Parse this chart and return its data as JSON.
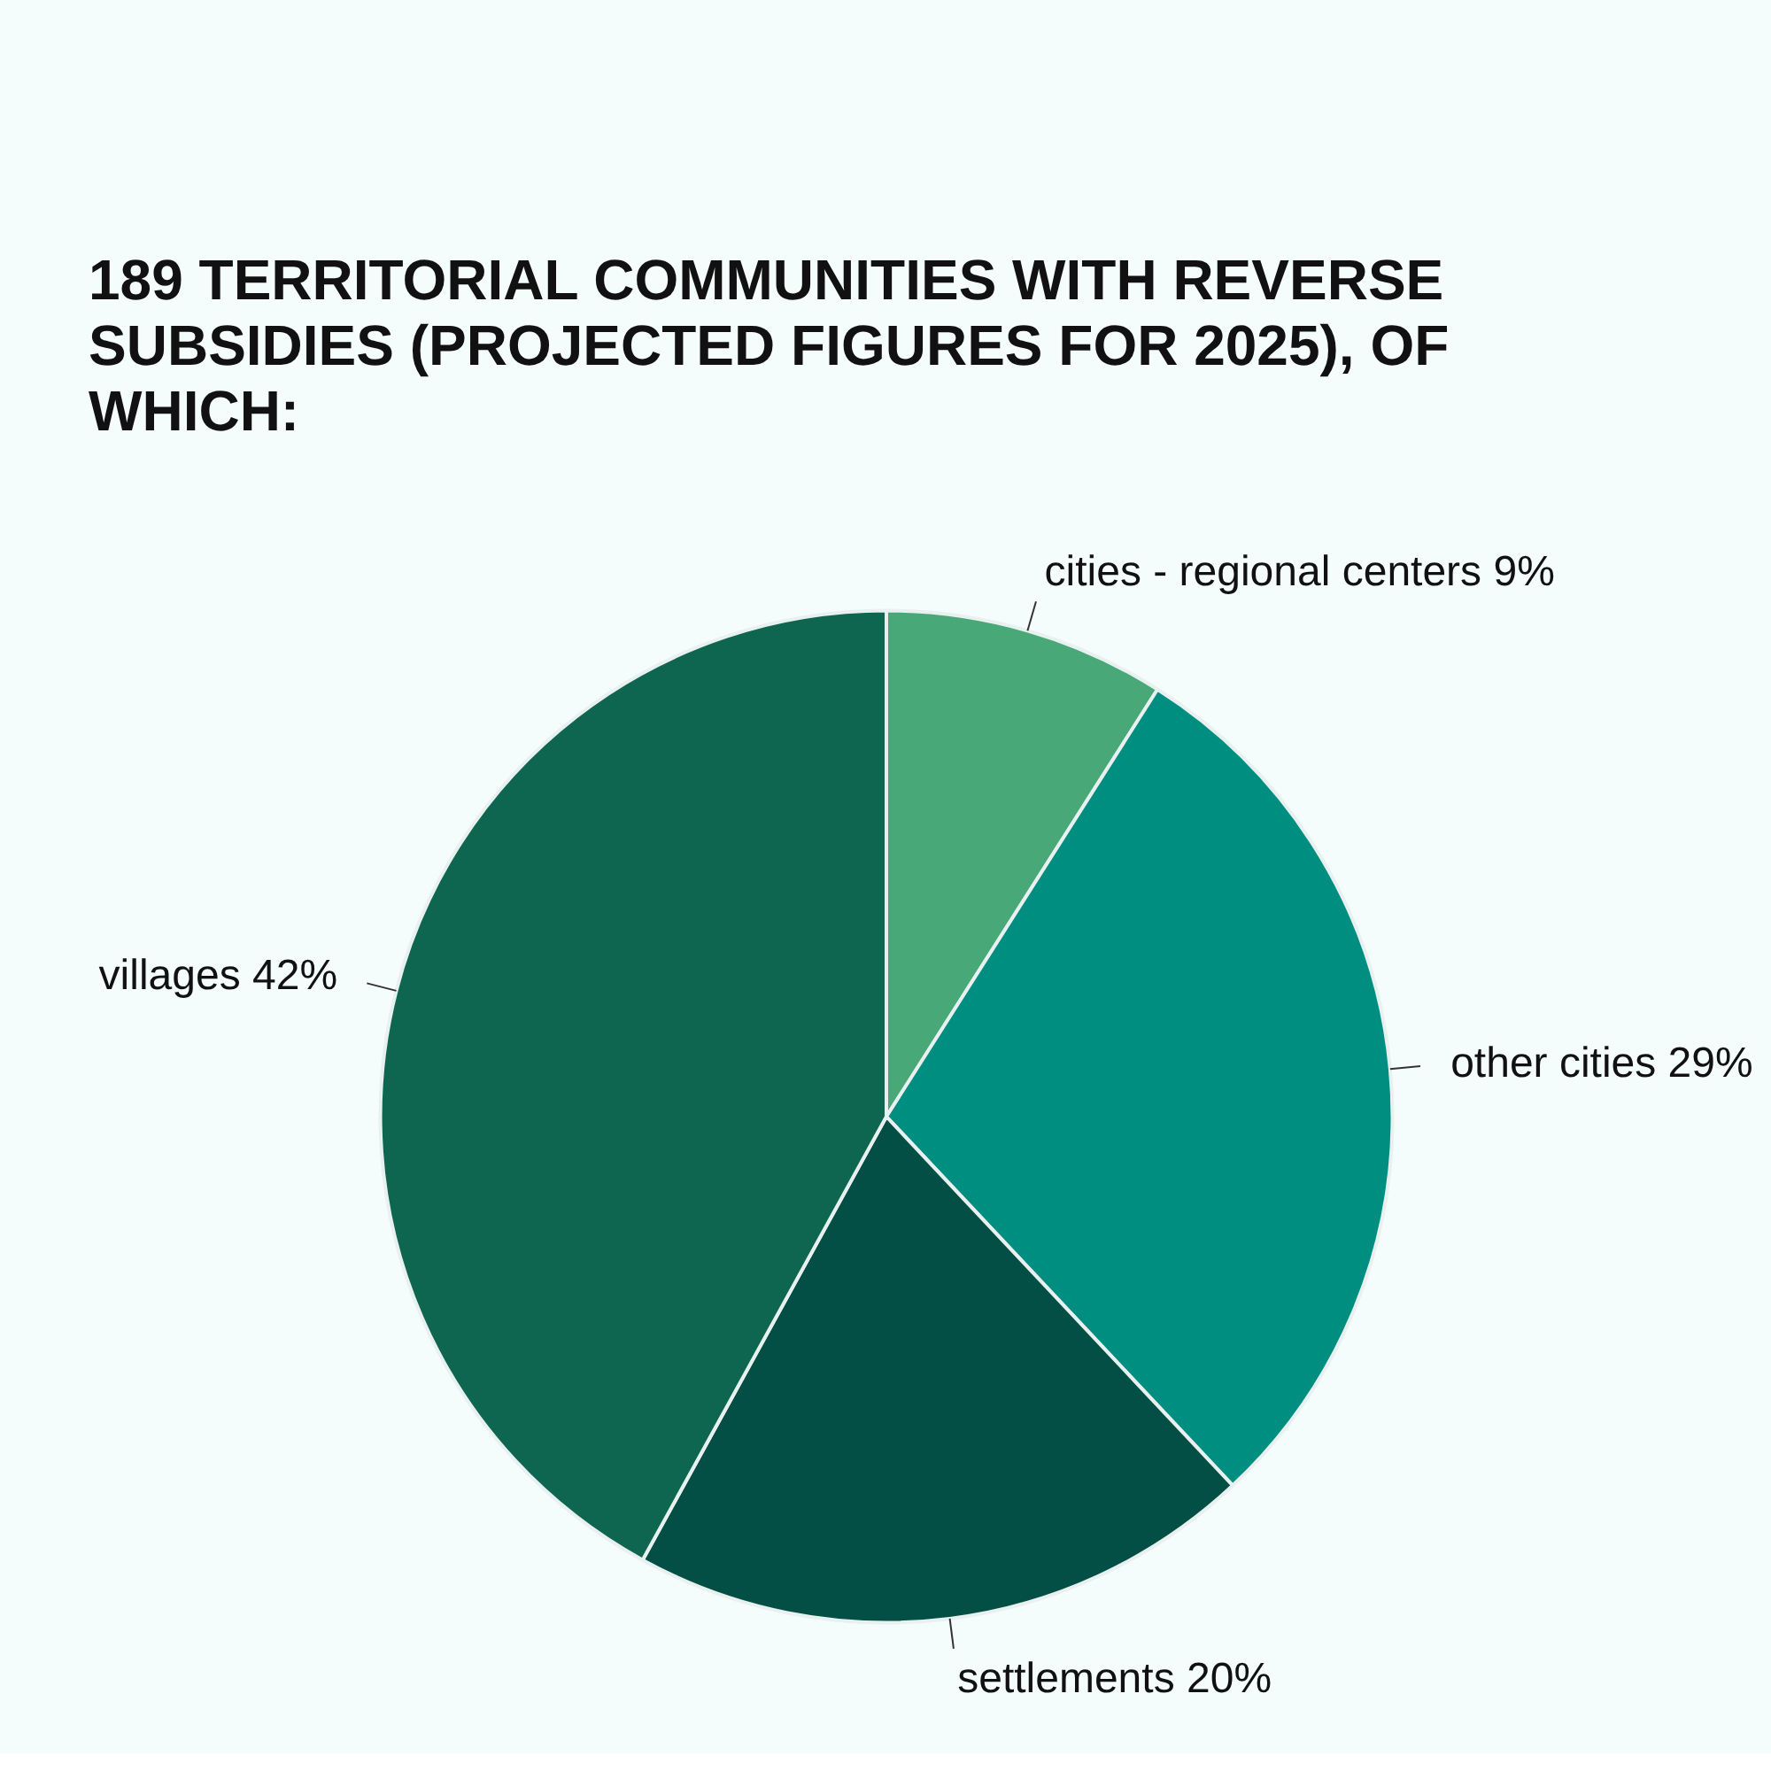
{
  "chart_data": {
    "type": "pie",
    "title": "189 TERRITORIAL COMMUNITIES WITH REVERSE SUBSIDIES (PROJECTED FIGURES FOR 2025), OF WHICH:",
    "categories": [
      "cities - regional centers",
      "other cities",
      "settlements",
      "villages"
    ],
    "values": [
      9,
      29,
      20,
      42
    ],
    "value_labels": [
      "9%",
      "29%",
      "20%",
      "42%"
    ],
    "colors": [
      "#48a878",
      "#008e80",
      "#034f45",
      "#0e6650"
    ]
  }
}
